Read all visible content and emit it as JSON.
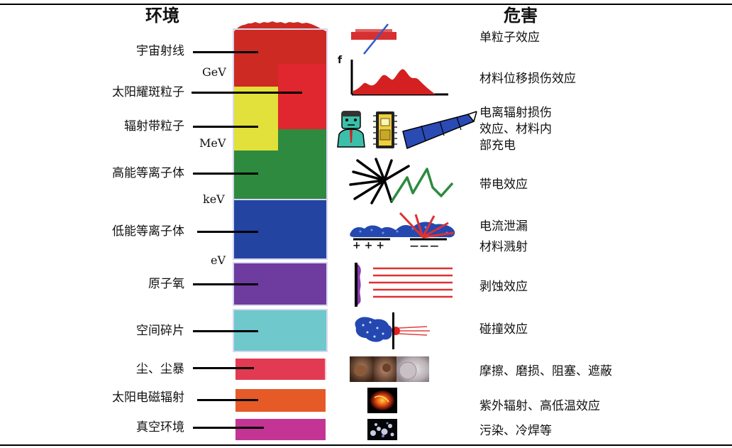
{
  "headers": {
    "environment": "环境",
    "hazard": "危害"
  },
  "environment": {
    "cosmic_rays": "宇宙射线",
    "solar_flare_particles": "太阳耀斑粒子",
    "radiation_belt_particles": "辐射带粒子",
    "high_energy_plasma": "高能等离子体",
    "low_energy_plasma": "低能等离子体",
    "atomic_oxygen": "原子氧",
    "space_debris": "空间碎片",
    "dust_storm": "尘、尘暴",
    "solar_em_radiation": "太阳电磁辐射",
    "vacuum": "真空环境"
  },
  "energy_scale": {
    "gev": "GeV",
    "mev": "MeV",
    "kev": "keV",
    "ev": "eV"
  },
  "hazards": {
    "single_event": "单粒子效应",
    "displacement": "材料位移损伤效应",
    "ionization_line1": "电离辐射损伤",
    "ionization_line2": "效应、材料内",
    "ionization_line3": "部充电",
    "charging": "带电效应",
    "leakage_line1": "电流泄漏",
    "leakage_line2": "材料溅射",
    "erosion": "剥蚀效应",
    "impact": "碰撞效应",
    "abrasion": "摩擦、磨损、阻塞、遮蔽",
    "uv_thermal": "紫外辐射、高低温效应",
    "contamination": "污染、冷焊等"
  },
  "icon_text": {
    "axis_f": "f",
    "plus_signs": "+ + +",
    "minus_signs": "— — —"
  },
  "icons": {
    "single_event": "particle-strike-icon",
    "displacement": "spectrum-plot-icon",
    "ionization": "human-chip-solar-panel-icon",
    "charging": "discharge-spark-icon",
    "leakage": "plasma-sputter-icon",
    "erosion": "erosion-beams-icon",
    "impact": "debris-impact-icon",
    "abrasion": "dust-photos-icon",
    "uv_thermal": "sun-flare-photo-icon",
    "contamination": "vacuum-photo-icon"
  },
  "colors": {
    "cosmic": "#cc2a22",
    "flare": "#e0262e",
    "belt": "#e2e03a",
    "high_plasma": "#2e8a3e",
    "low_plasma": "#2444a2",
    "atomic_o": "#6e3c9e",
    "debris": "#6ec8cc",
    "dust": "#e23a52",
    "solar_em": "#e65a28",
    "vacuum": "#c43494"
  }
}
